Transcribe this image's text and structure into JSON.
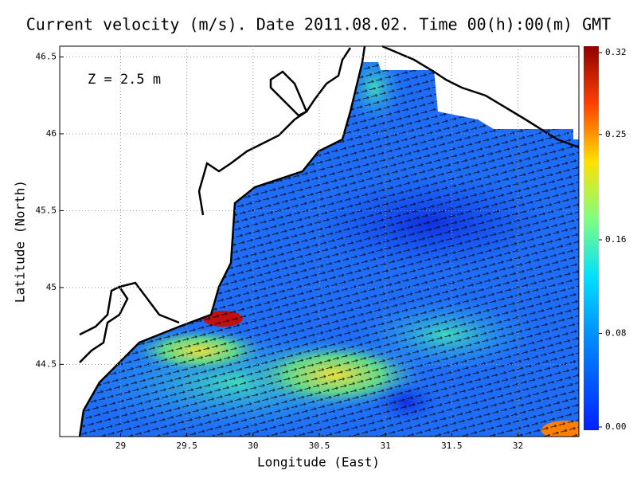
{
  "chart_data": {
    "type": "vector-field-map",
    "title": "Current velocity (m/s). Date 2011.08.02. Time 00(h):00(m) GMT",
    "xlabel": "Longitude (East)",
    "ylabel": "Latitude (North)",
    "annotation": "Z = 2.5 m",
    "xlim": [
      28.54,
      32.46
    ],
    "ylim": [
      44.03,
      46.57
    ],
    "xticks": [
      29,
      29.5,
      30,
      30.5,
      31,
      31.5,
      32
    ],
    "yticks": [
      44.5,
      45,
      45.5,
      46,
      46.5
    ],
    "grid": true,
    "colorbar": {
      "lim": [
        0,
        0.32
      ],
      "ticks": [
        {
          "value": 0,
          "label": "0.00"
        },
        {
          "value": 0.08,
          "label": "0.08"
        },
        {
          "value": 0.16,
          "label": "0.16"
        },
        {
          "value": 0.25,
          "label": "0.25"
        },
        {
          "value": 0.32,
          "label": "0.32"
        }
      ]
    }
  }
}
